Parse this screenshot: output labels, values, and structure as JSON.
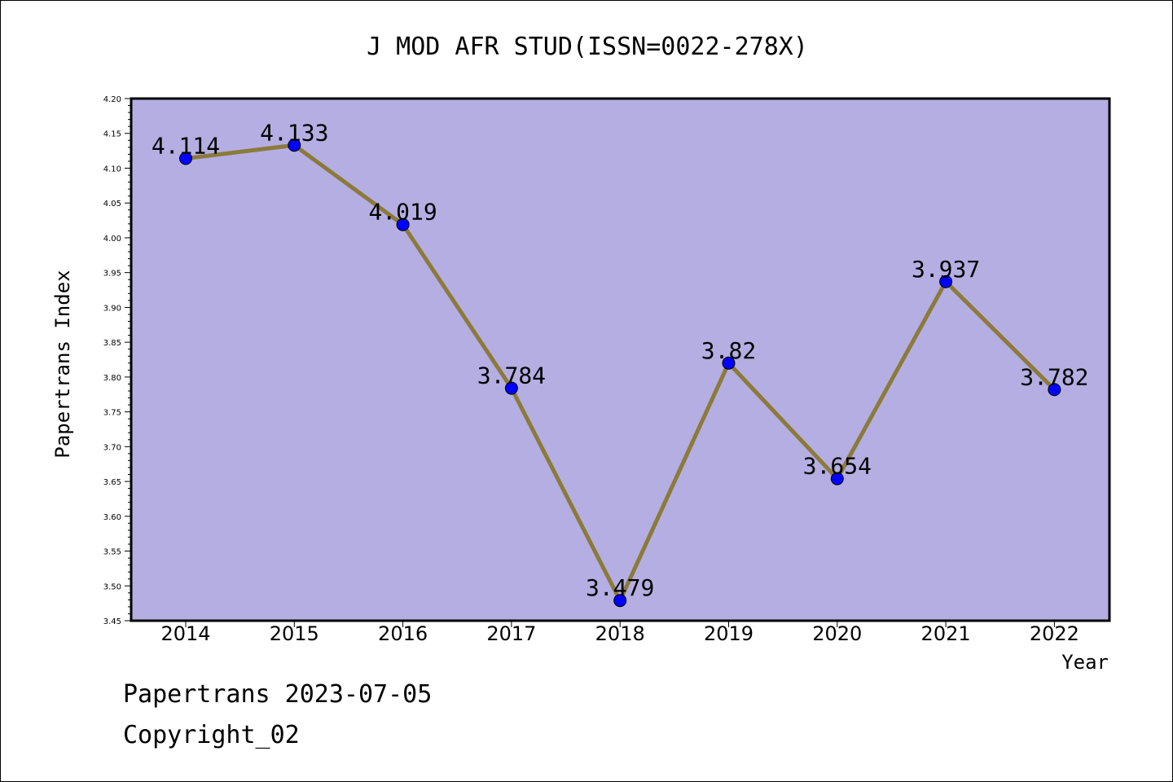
{
  "chart_data": {
    "type": "line",
    "title": "J MOD AFR STUD(ISSN=0022-278X)",
    "xlabel": "Year",
    "ylabel": "Papertrans Index",
    "categories": [
      "2014",
      "2015",
      "2016",
      "2017",
      "2018",
      "2019",
      "2020",
      "2021",
      "2022"
    ],
    "series": [
      {
        "values": [
          4.114,
          4.133,
          4.019,
          3.784,
          3.479,
          3.82,
          3.654,
          3.937,
          3.782
        ],
        "labels": [
          "4.114",
          "4.133",
          "4.019",
          "3.784",
          "3.479",
          "3.82",
          "3.654",
          "3.937",
          "3.782"
        ]
      }
    ],
    "ylim": [
      3.45,
      4.2
    ],
    "yticks": [
      "3.45",
      "3.50",
      "3.55",
      "3.60",
      "3.65",
      "3.70",
      "3.75",
      "3.80",
      "3.85",
      "3.90",
      "3.95",
      "4.00",
      "4.05",
      "4.10",
      "4.15",
      "4.20"
    ],
    "grid": false,
    "colors": {
      "plot_background": "#b5aee2",
      "line": "#8b7a3a",
      "marker": "#0000ff"
    }
  },
  "footer": {
    "line1": "Papertrans 2023-07-05",
    "line2": "Copyright_02"
  }
}
